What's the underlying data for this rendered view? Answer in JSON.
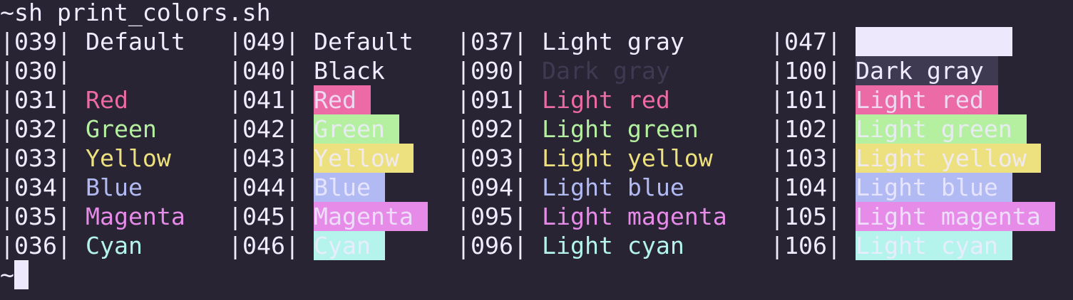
{
  "prompt": "~sh print_colors.sh",
  "rows": [
    [
      {
        "code": "|039|",
        "text": "Default"
      },
      {
        "code": "|049|",
        "text": "Default"
      },
      {
        "code": "|037|",
        "text": "Light gray"
      },
      {
        "code": "|047|"
      }
    ],
    [
      {
        "code": "|030|"
      },
      {
        "code": "|040|",
        "text": "Black"
      },
      {
        "code": "|090|",
        "text": "Dark gray"
      },
      {
        "code": "|100|",
        "text": "Dark gray"
      }
    ],
    [
      {
        "code": "|031|",
        "text": "Red"
      },
      {
        "code": "|041|",
        "text": "Red"
      },
      {
        "code": "|091|",
        "text": "Light red"
      },
      {
        "code": "|101|",
        "text": "Light red"
      }
    ],
    [
      {
        "code": "|032|",
        "text": "Green"
      },
      {
        "code": "|042|",
        "text": "Green"
      },
      {
        "code": "|092|",
        "text": "Light green"
      },
      {
        "code": "|102|",
        "text": "Light green"
      }
    ],
    [
      {
        "code": "|033|",
        "text": "Yellow"
      },
      {
        "code": "|043|",
        "text": "Yellow"
      },
      {
        "code": "|093|",
        "text": "Light yellow"
      },
      {
        "code": "|103|",
        "text": "Light yellow"
      }
    ],
    [
      {
        "code": "|034|",
        "text": "Blue"
      },
      {
        "code": "|044|",
        "text": "Blue"
      },
      {
        "code": "|094|",
        "text": "Light blue"
      },
      {
        "code": "|104|",
        "text": "Light blue"
      }
    ],
    [
      {
        "code": "|035|",
        "text": "Magenta"
      },
      {
        "code": "|045|",
        "text": "Magenta"
      },
      {
        "code": "|095|",
        "text": "Light magenta"
      },
      {
        "code": "|105|",
        "text": "Light magenta"
      }
    ],
    [
      {
        "code": "|036|",
        "text": "Cyan"
      },
      {
        "code": "|046|",
        "text": "Cyan"
      },
      {
        "code": "|096|",
        "text": "Light cyan"
      },
      {
        "code": "|106|",
        "text": "Light cyan"
      }
    ]
  ],
  "cursor_prompt": "~"
}
